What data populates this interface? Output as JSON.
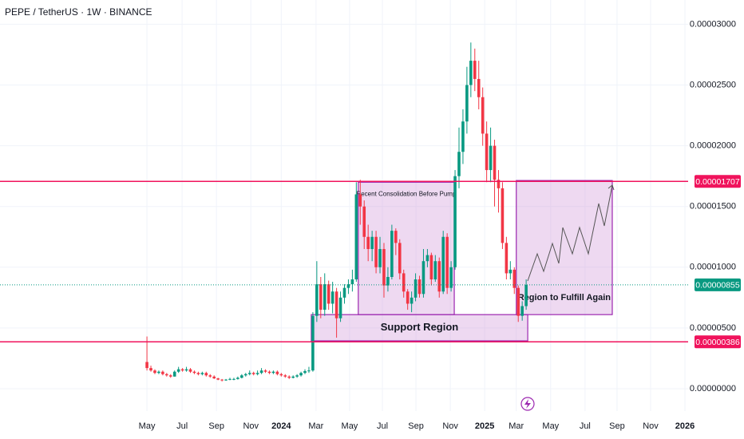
{
  "chart_data": {
    "type": "candlestick",
    "title": "PEPE / TetherUS · 1W · BINANCE",
    "up_color": "#089981",
    "down_color": "#f23645",
    "grid": true,
    "xlim": [
      -37.2,
      137.0
    ],
    "ylim": [
      -1.84e-06,
      3.2e-05
    ],
    "xticks": [
      {
        "value": 0,
        "label": "May"
      },
      {
        "value": 8.9,
        "label": "Jul"
      },
      {
        "value": 17.6,
        "label": "Sep"
      },
      {
        "value": 26.3,
        "label": "Nov"
      },
      {
        "value": 34,
        "label": "2024"
      },
      {
        "value": 42.8,
        "label": "Mar"
      },
      {
        "value": 51.3,
        "label": "May"
      },
      {
        "value": 59.6,
        "label": "Jul"
      },
      {
        "value": 68.1,
        "label": "Sep"
      },
      {
        "value": 76.8,
        "label": "Nov"
      },
      {
        "value": 85.5,
        "label": "2025"
      },
      {
        "value": 93.5,
        "label": "Mar"
      },
      {
        "value": 102.2,
        "label": "May"
      },
      {
        "value": 110.9,
        "label": "Jul"
      },
      {
        "value": 119,
        "label": "Sep"
      },
      {
        "value": 127.5,
        "label": "Nov"
      },
      {
        "value": 136.2,
        "label": "2026"
      }
    ],
    "yticks": [
      {
        "value": 3e-05,
        "label": "0.00003000"
      },
      {
        "value": 2.5e-05,
        "label": "0.00002500"
      },
      {
        "value": 2e-05,
        "label": "0.00002000"
      },
      {
        "value": 1.5e-05,
        "label": "0.00001500"
      },
      {
        "value": 1e-05,
        "label": "0.00001000"
      },
      {
        "value": 5e-06,
        "label": "0.00000500"
      },
      {
        "value": 0,
        "label": "0.00000000"
      }
    ],
    "price_lines": [
      {
        "value": 1.707e-05,
        "label": "0.00001707",
        "color": "#f0135c",
        "style": "solid"
      },
      {
        "value": 8.55e-06,
        "label": "0.00000855",
        "color": "#089981",
        "style": "dotted"
      },
      {
        "value": 3.86e-06,
        "label": "0.00000386",
        "color": "#f0135c",
        "style": "solid"
      }
    ],
    "boxes": [
      {
        "label": "Recent Consolidation Before Pump",
        "x": [
          53.5,
          77.8
        ],
        "y": [
          6.1e-06,
          1.7e-05
        ]
      },
      {
        "label": "Support Region",
        "x": [
          41.6,
          96.4
        ],
        "y": [
          3.94e-06,
          6.1e-06
        ]
      },
      {
        "label": "Region to Fulfill Again",
        "x": [
          93.5,
          117.8
        ],
        "y": [
          6.1e-06,
          1.714e-05
        ]
      }
    ],
    "candles": [
      [
        2.2e-06,
        4.3e-06,
        1.5e-06,
        1.7e-06
      ],
      [
        1.7e-06,
        1.9e-06,
        1.4e-06,
        1.5e-06
      ],
      [
        1.5e-06,
        1.6e-06,
        1.2e-06,
        1.3e-06
      ],
      [
        1.3e-06,
        1.5e-06,
        1.2e-06,
        1.4e-06
      ],
      [
        1.4e-06,
        1.5e-06,
        1.1e-06,
        1.2e-06
      ],
      [
        1.2e-06,
        1.3e-06,
        1e-06,
        1.1e-06
      ],
      [
        1.1e-06,
        1.2e-06,
        9e-07,
        1e-06
      ],
      [
        1e-06,
        1.5e-06,
        1e-06,
        1.4e-06
      ],
      [
        1.4e-06,
        1.8e-06,
        1.3e-06,
        1.6e-06
      ],
      [
        1.6e-06,
        1.7e-06,
        1.4e-06,
        1.5e-06
      ],
      [
        1.5e-06,
        1.8e-06,
        1.4e-06,
        1.6e-06
      ],
      [
        1.6e-06,
        1.7e-06,
        1.3e-06,
        1.4e-06
      ],
      [
        1.4e-06,
        1.5e-06,
        1.2e-06,
        1.3e-06
      ],
      [
        1.3e-06,
        1.4e-06,
        1.1e-06,
        1.2e-06
      ],
      [
        1.2e-06,
        1.4e-06,
        1.1e-06,
        1.3e-06
      ],
      [
        1.3e-06,
        1.4e-06,
        1e-06,
        1.1e-06
      ],
      [
        1.1e-06,
        1.2e-06,
        9e-07,
        1e-06
      ],
      [
        1e-06,
        1.1e-06,
        8e-07,
        8.5e-07
      ],
      [
        8.5e-07,
        9e-07,
        7e-07,
        7.5e-07
      ],
      [
        7.5e-07,
        8e-07,
        6e-07,
        7e-07
      ],
      [
        7e-07,
        8e-07,
        6.5e-07,
        7.5e-07
      ],
      [
        7.5e-07,
        9e-07,
        7e-07,
        8e-07
      ],
      [
        8e-07,
        9e-07,
        7e-07,
        8e-07
      ],
      [
        8e-07,
        1e-06,
        7.5e-07,
        9e-07
      ],
      [
        9e-07,
        1.2e-06,
        8.5e-07,
        1.1e-06
      ],
      [
        1.1e-06,
        1.3e-06,
        1e-06,
        1.2e-06
      ],
      [
        1.2e-06,
        1.5e-06,
        1.1e-06,
        1.3e-06
      ],
      [
        1.3e-06,
        1.4e-06,
        1.1e-06,
        1.2e-06
      ],
      [
        1.2e-06,
        1.5e-06,
        1.1e-06,
        1.3e-06
      ],
      [
        1.3e-06,
        1.7e-06,
        1.2e-06,
        1.5e-06
      ],
      [
        1.5e-06,
        1.6e-06,
        1.3e-06,
        1.4e-06
      ],
      [
        1.4e-06,
        1.5e-06,
        1.2e-06,
        1.3e-06
      ],
      [
        1.3e-06,
        1.5e-06,
        1.2e-06,
        1.4e-06
      ],
      [
        1.4e-06,
        1.5e-06,
        1.1e-06,
        1.2e-06
      ],
      [
        1.2e-06,
        1.3e-06,
        1e-06,
        1.1e-06
      ],
      [
        1.1e-06,
        1.2e-06,
        9e-07,
        1e-06
      ],
      [
        1e-06,
        1.1e-06,
        8e-07,
        9e-07
      ],
      [
        9e-07,
        1.1e-06,
        8.5e-07,
        1e-06
      ],
      [
        1e-06,
        1.2e-06,
        9e-07,
        1.1e-06
      ],
      [
        1.1e-06,
        1.4e-06,
        1e-06,
        1.3e-06
      ],
      [
        1.3e-06,
        1.6e-06,
        1.2e-06,
        1.45e-06
      ],
      [
        1.45e-06,
        1.8e-06,
        1.3e-06,
        1.5e-06
      ],
      [
        1.5e-06,
        6.3e-06,
        1.4e-06,
        6e-06
      ],
      [
        6e-06,
        1.05e-05,
        5.5e-06,
        8.6e-06
      ],
      [
        8.6e-06,
        9.2e-06,
        5.8e-06,
        6.5e-06
      ],
      [
        6.5e-06,
        9.5e-06,
        6e-06,
        8.6e-06
      ],
      [
        8.6e-06,
        8.9e-06,
        6.5e-06,
        7e-06
      ],
      [
        7e-06,
        8.8e-06,
        6.2e-06,
        8e-06
      ],
      [
        8e-06,
        8.3e-06,
        4.2e-06,
        5.8e-06
      ],
      [
        5.8e-06,
        8e-06,
        5.5e-06,
        7.5e-06
      ],
      [
        7.5e-06,
        8.6e-06,
        7e-06,
        8.3e-06
      ],
      [
        8.3e-06,
        9e-06,
        7.8e-06,
        8.6e-06
      ],
      [
        8.6e-06,
        9.8e-06,
        8e-06,
        9e-06
      ],
      [
        9e-06,
        1.7e-05,
        8.8e-06,
        1.6e-05
      ],
      [
        1.6e-05,
        1.72e-05,
        1.35e-05,
        1.5e-05
      ],
      [
        1.5e-05,
        1.55e-05,
        1.15e-05,
        1.25e-05
      ],
      [
        1.25e-05,
        1.35e-05,
        1.05e-05,
        1.15e-05
      ],
      [
        1.15e-05,
        1.3e-05,
        1.05e-05,
        1.25e-05
      ],
      [
        1.25e-05,
        1.3e-05,
        9.5e-06,
        1e-05
      ],
      [
        1e-05,
        1.25e-05,
        9.5e-06,
        1.15e-05
      ],
      [
        1.15e-05,
        1.2e-05,
        7.5e-06,
        8.5e-06
      ],
      [
        8.5e-06,
        1e-05,
        8e-06,
        9.2e-06
      ],
      [
        9.2e-06,
        1.35e-05,
        9e-06,
        1.3e-05
      ],
      [
        1.3e-05,
        1.32e-05,
        1.1e-05,
        1.2e-05
      ],
      [
        1.2e-05,
        1.23e-05,
        9e-06,
        9.5e-06
      ],
      [
        9.5e-06,
        9.8e-06,
        7.5e-06,
        8e-06
      ],
      [
        8e-06,
        8.2e-06,
        6.5e-06,
        7e-06
      ],
      [
        7e-06,
        8e-06,
        6.3e-06,
        7.5e-06
      ],
      [
        7.5e-06,
        9.5e-06,
        7.2e-06,
        9e-06
      ],
      [
        9e-06,
        9.3e-06,
        7.5e-06,
        7.8e-06
      ],
      [
        7.8e-06,
        1.15e-05,
        7.5e-06,
        1.05e-05
      ],
      [
        1.05e-05,
        1.15e-05,
        1e-05,
        1.1e-05
      ],
      [
        1.1e-05,
        1.12e-05,
        8.5e-06,
        9e-06
      ],
      [
        9e-06,
        1.1e-05,
        8.8e-06,
        1.05e-05
      ],
      [
        1.05e-05,
        1.08e-05,
        7.5e-06,
        8e-06
      ],
      [
        8e-06,
        1.3e-05,
        7.8e-06,
        1.25e-05
      ],
      [
        1.25e-05,
        1.28e-05,
        7.8e-06,
        8.3e-06
      ],
      [
        8.3e-06,
        1.05e-05,
        8e-06,
        1e-05
      ],
      [
        1e-05,
        1.8e-05,
        9.8e-06,
        1.75e-05
      ],
      [
        1.75e-05,
        2.15e-05,
        1.65e-05,
        1.95e-05
      ],
      [
        1.95e-05,
        2.3e-05,
        1.85e-05,
        2.2e-05
      ],
      [
        2.2e-05,
        2.65e-05,
        2.1e-05,
        2.5e-05
      ],
      [
        2.5e-05,
        2.85e-05,
        2.4e-05,
        2.7e-05
      ],
      [
        2.7e-05,
        2.8e-05,
        2.45e-05,
        2.55e-05
      ],
      [
        2.55e-05,
        2.7e-05,
        2.3e-05,
        2.4e-05
      ],
      [
        2.4e-05,
        2.48e-05,
        2e-05,
        2.1e-05
      ],
      [
        2.1e-05,
        2.2e-05,
        1.7e-05,
        1.8e-05
      ],
      [
        1.8e-05,
        2.15e-05,
        1.7e-05,
        2e-05
      ],
      [
        2e-05,
        2.05e-05,
        1.5e-05,
        1.72e-05
      ],
      [
        1.72e-05,
        1.8e-05,
        1.45e-05,
        1.65e-05
      ],
      [
        1.65e-05,
        1.7e-05,
        1.15e-05,
        1.2e-05
      ],
      [
        1.2e-05,
        1.25e-05,
        9e-06,
        9.5e-06
      ],
      [
        9.5e-06,
        1.05e-05,
        9e-06,
        9.8e-06
      ],
      [
        9.8e-06,
        1e-05,
        7.8e-06,
        8.3e-06
      ],
      [
        8.3e-06,
        8.5e-06,
        5.5e-06,
        6e-06
      ],
      [
        6e-06,
        7.2e-06,
        5.6e-06,
        6.8e-06
      ],
      [
        6.8e-06,
        9e-06,
        6.5e-06,
        8.55e-06
      ]
    ]
  }
}
